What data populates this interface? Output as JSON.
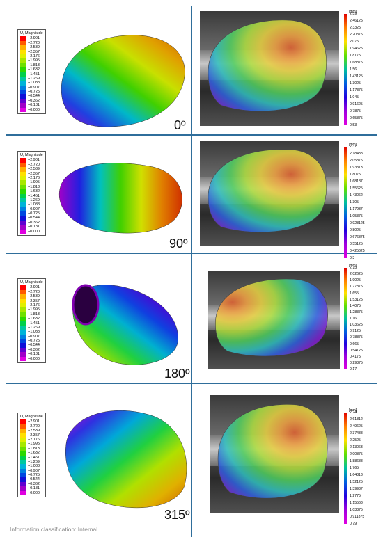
{
  "legend": {
    "title": "U, Magnitude",
    "values": [
      "+2.901",
      "+2.720",
      "+2.539",
      "+2.357",
      "+2.176",
      "+1.995",
      "+1.813",
      "+1.632",
      "+1.451",
      "+1.269",
      "+1.088",
      "+0.907",
      "+0.725",
      "+0.544",
      "+0.362",
      "+0.181",
      "+0.000"
    ],
    "colors": [
      "#ff0000",
      "#ff5a00",
      "#ffb000",
      "#ffe000",
      "#e0f000",
      "#a8e800",
      "#6ee000",
      "#2cd800",
      "#00d04a",
      "#00c8a0",
      "#00b4d8",
      "#0080e0",
      "#0048e0",
      "#1010d8",
      "#6000d0",
      "#a000c8",
      "#e000e0"
    ]
  },
  "rows": [
    {
      "angle": "0º",
      "scale": {
        "unit": "[mm]",
        "ticks": [
          "2.59",
          "2.46125",
          "2.3325",
          "2.20375",
          "2.075",
          "1.94625",
          "1.8175",
          "1.68875",
          "1.56",
          "1.43125",
          "1.3025",
          "1.17375",
          "1.045",
          "0.91625",
          "0.7875",
          "0.65875",
          "0.53"
        ]
      }
    },
    {
      "angle": "90º",
      "scale": {
        "unit": "[mm]",
        "ticks": [
          "2.31",
          "2.18438",
          "2.05875",
          "1.93313",
          "1.8075",
          "1.68187",
          "1.55625",
          "1.43062",
          "1.305",
          "1.17937",
          "1.05375",
          "0.928125",
          "0.8025",
          "0.676875",
          "0.55125",
          "0.425625",
          "0.3"
        ]
      }
    },
    {
      "angle": "180º",
      "scale": {
        "unit": "[mm]",
        "ticks": [
          "2.15",
          "2.02625",
          "1.9025",
          "1.77875",
          "1.655",
          "1.53125",
          "1.4075",
          "1.28375",
          "1.16",
          "1.03625",
          "0.9125",
          "0.78875",
          "0.665",
          "0.54125",
          "0.4175",
          "0.29375",
          "0.17"
        ]
      }
    },
    {
      "angle": "315º",
      "scale": {
        "unit": "[mm]",
        "ticks": [
          "2.74",
          "2.61812",
          "2.49625",
          "2.37438",
          "2.2525",
          "2.13063",
          "2.00875",
          "1.88688",
          "1.765",
          "1.64313",
          "1.52125",
          "1.39937",
          "1.2775",
          "1.15563",
          "1.03375",
          "0.911875",
          "0.79"
        ]
      }
    }
  ],
  "footer": "Information classification: Internal"
}
